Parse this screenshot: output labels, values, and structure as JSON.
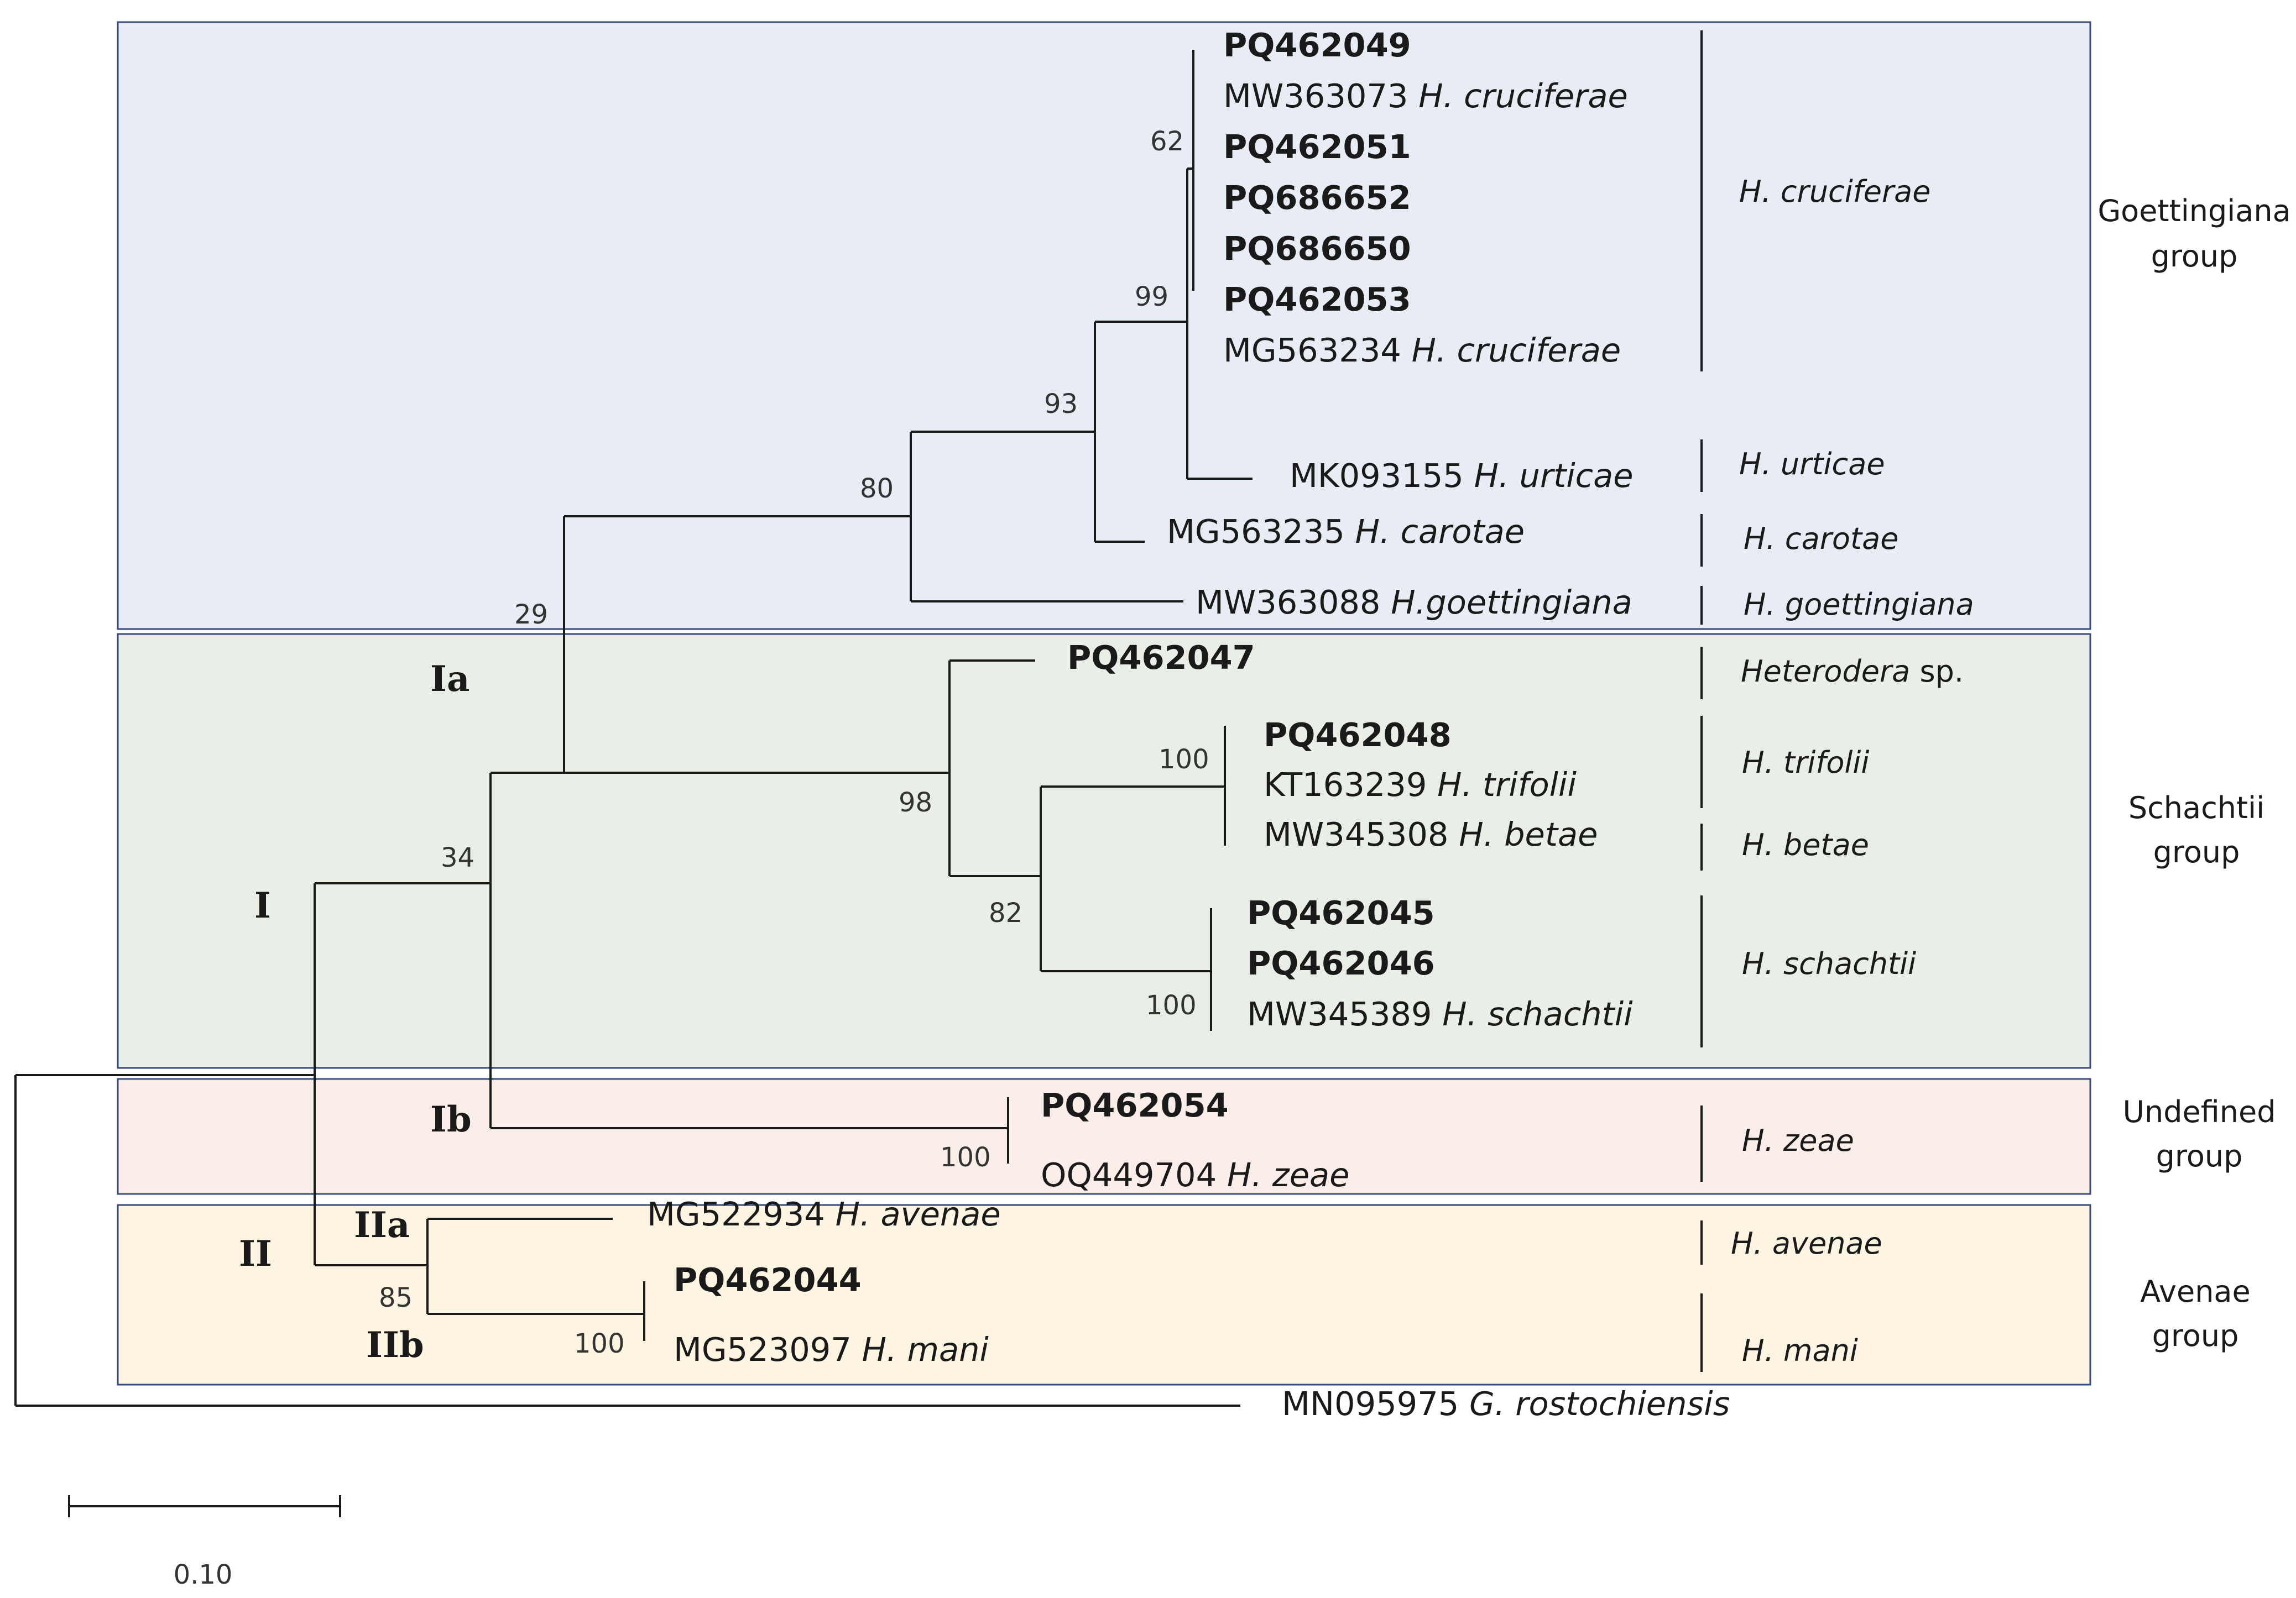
{
  "colors": {
    "goettingiana_band": "#e8ecf4",
    "schachtii_band": "#e9eee6",
    "undefined_band": "#fbede8",
    "avenae_band": "#fdf5e1",
    "band_border": "#3a4a7a",
    "branch": "#1a1a1a"
  },
  "groups": [
    {
      "name": "Goettingiana group",
      "line1": "Goettingiana",
      "line2": "group"
    },
    {
      "name": "Schachtii group",
      "line1": "Schachtii",
      "line2": "group"
    },
    {
      "name": "Undefined group",
      "line1": "Undefined",
      "line2": "group"
    },
    {
      "name": "Avenae group",
      "line1": "Avenae",
      "line2": "group"
    }
  ],
  "clades": [
    "I",
    "Ia",
    "Ib",
    "II",
    "IIa",
    "IIb"
  ],
  "taxa": [
    {
      "accession": "PQ462049",
      "species": "",
      "bold": true
    },
    {
      "accession": "MW363073",
      "species": "H. cruciferae",
      "bold": false
    },
    {
      "accession": "PQ462051",
      "species": "",
      "bold": true
    },
    {
      "accession": "PQ686652",
      "species": "",
      "bold": true
    },
    {
      "accession": "PQ686650",
      "species": "",
      "bold": true
    },
    {
      "accession": "PQ462053",
      "species": "",
      "bold": true
    },
    {
      "accession": "MG563234",
      "species": "H. cruciferae",
      "bold": false
    },
    {
      "accession": "MK093155",
      "species": "H. urticae",
      "bold": false
    },
    {
      "accession": "MG563235",
      "species": "H. carotae",
      "bold": false
    },
    {
      "accession": "MW363088",
      "species": "H.goettingiana",
      "bold": false
    },
    {
      "accession": "PQ462047",
      "species": "",
      "bold": true
    },
    {
      "accession": "PQ462048",
      "species": "",
      "bold": true
    },
    {
      "accession": "KT163239",
      "species": "H. trifolii",
      "bold": false
    },
    {
      "accession": "MW345308",
      "species": "H. betae",
      "bold": false
    },
    {
      "accession": "PQ462045",
      "species": "",
      "bold": true
    },
    {
      "accession": "PQ462046",
      "species": "",
      "bold": true
    },
    {
      "accession": "MW345389",
      "species": "H. schachtii",
      "bold": false
    },
    {
      "accession": "PQ462054",
      "species": "",
      "bold": true
    },
    {
      "accession": "OQ449704",
      "species": "H. zeae",
      "bold": false
    },
    {
      "accession": "MG522934",
      "species": "H. avenae",
      "bold": false
    },
    {
      "accession": "PQ462044",
      "species": "",
      "bold": true
    },
    {
      "accession": "MG523097",
      "species": "H. mani",
      "bold": false
    },
    {
      "accession": "MN095975",
      "species": "G. rostochiensis",
      "bold": false
    }
  ],
  "species_labels": [
    {
      "name": "H. cruciferae"
    },
    {
      "name": "H. urticae"
    },
    {
      "name": "H. carotae"
    },
    {
      "name": "H. goettingiana"
    },
    {
      "name": "Heterodera",
      "suffix": "sp."
    },
    {
      "name": "H. trifolii"
    },
    {
      "name": "H. betae"
    },
    {
      "name": "H. schachtii"
    },
    {
      "name": "H. zeae"
    },
    {
      "name": "H. avenae"
    },
    {
      "name": "H. mani"
    }
  ],
  "bootstrap": [
    "62",
    "99",
    "93",
    "80",
    "29",
    "34",
    "98",
    "100",
    "82",
    "100",
    "100",
    "85",
    "100"
  ],
  "scale_bar": {
    "value": 0.1,
    "label": "0.10"
  }
}
